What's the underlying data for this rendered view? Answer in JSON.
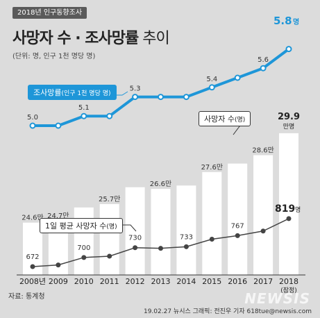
{
  "header": {
    "badge": "2018년 인구동향조사",
    "title_main": "사망자 수 · 조사망률",
    "title_suffix": " 추이",
    "unit_note": "(단위: 명, 인구 1천 명당 명)"
  },
  "source": "자료: 통계청",
  "footer": "19.02.27  뉴시스 그래픽: 전진우 기자 618tue@newsis.com",
  "watermark": "NEWSIS",
  "colors": {
    "bar": "#ffffff",
    "rate_line": "#1e96d8",
    "daily_line": "#444444",
    "background": "#dcdcdc"
  },
  "chart_data": {
    "type": "bar",
    "categories": [
      "2008년",
      "2009",
      "2010",
      "2011",
      "2012",
      "2013",
      "2014",
      "2015",
      "2016",
      "2017",
      "2018"
    ],
    "category_note": "(잠정)",
    "series": [
      {
        "name": "사망자 수",
        "legend_label": "사망자 수",
        "legend_unit": "(명)",
        "type": "bar",
        "values": [
          24.6,
          24.7,
          25.5,
          25.7,
          26.7,
          26.6,
          26.8,
          27.6,
          28.1,
          28.6,
          29.9
        ],
        "labels": [
          "24.6만",
          "24.7만",
          "",
          "25.7만",
          "",
          "26.6만",
          "",
          "27.6만",
          "",
          "28.6만",
          "29.9"
        ],
        "last_unit": "만명"
      },
      {
        "name": "조사망률",
        "legend_label": "조사망률",
        "legend_unit": "(인구 1천 명당 명)",
        "type": "line",
        "values": [
          5.0,
          5.0,
          5.1,
          5.1,
          5.3,
          5.3,
          5.3,
          5.4,
          5.5,
          5.6,
          5.8
        ],
        "labels": [
          "5.0",
          "",
          "5.1",
          "",
          "5.3",
          "",
          "",
          "5.4",
          "",
          "5.6",
          "5.8"
        ],
        "last_unit": "명"
      },
      {
        "name": "1일 평균 사망자 수",
        "legend_label": "1일 평균 사망자 수",
        "legend_unit": "(명)",
        "type": "line",
        "values": [
          672,
          677,
          700,
          704,
          730,
          728,
          733,
          756,
          767,
          781,
          819
        ],
        "labels": [
          "672",
          "",
          "700",
          "",
          "730",
          "",
          "733",
          "",
          "767",
          "",
          "819"
        ],
        "last_unit": "명"
      }
    ]
  }
}
